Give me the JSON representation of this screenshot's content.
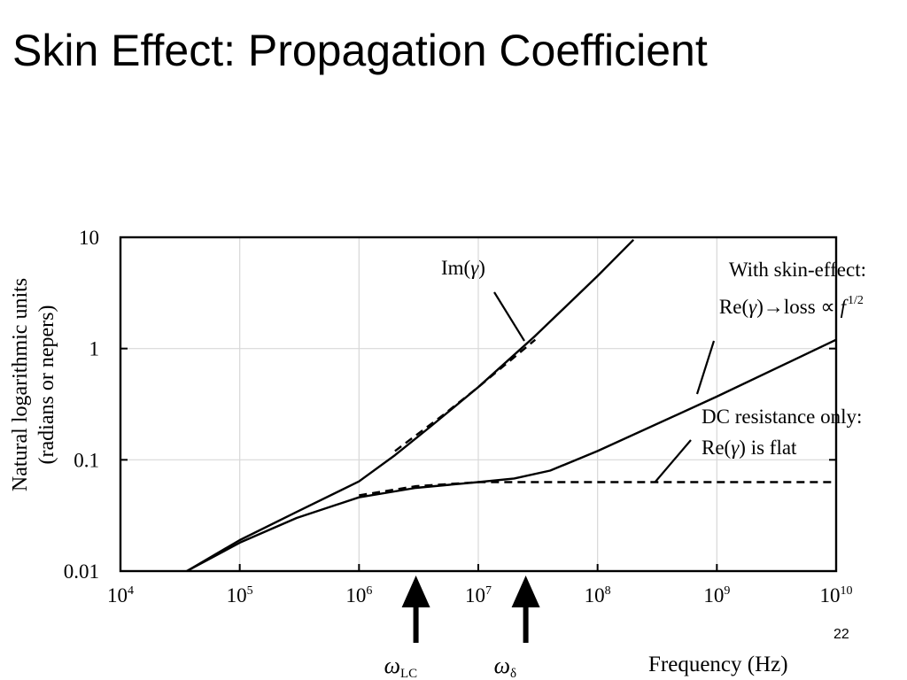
{
  "slide": {
    "title": "Skin Effect: Propagation Coefficient",
    "number": "22"
  },
  "chart_data": {
    "type": "line",
    "title": "",
    "xlabel": "Frequency (Hz)",
    "ylabel_lines": [
      "Natural logarithmic units",
      "(radians or nepers)"
    ],
    "x_scale": "log",
    "y_scale": "log",
    "xlim": [
      10000,
      10000000000
    ],
    "ylim": [
      0.01,
      10
    ],
    "grid": true,
    "x_ticks": [
      {
        "base": "10",
        "exp": "4"
      },
      {
        "base": "10",
        "exp": "5"
      },
      {
        "base": "10",
        "exp": "6"
      },
      {
        "base": "10",
        "exp": "7"
      },
      {
        "base": "10",
        "exp": "8"
      },
      {
        "base": "10",
        "exp": "9"
      },
      {
        "base": "10",
        "exp": "10"
      }
    ],
    "y_ticks": [
      "10",
      "1",
      "0.1",
      "0.01"
    ],
    "series": [
      {
        "id": "im_gamma",
        "style": "solid",
        "x": [
          36000,
          100000,
          300000,
          1000000,
          2000000,
          4000000,
          10000000,
          30000000,
          100000000,
          200000000
        ],
        "y": [
          0.01,
          0.019,
          0.034,
          0.064,
          0.11,
          0.2,
          0.45,
          1.3,
          4.5,
          9.5
        ]
      },
      {
        "id": "im_gamma_asymptote",
        "style": "dashed",
        "x": [
          2000000,
          5000000,
          10000000,
          30000000
        ],
        "y": [
          0.12,
          0.25,
          0.45,
          1.2
        ]
      },
      {
        "id": "re_gamma_skin_effect",
        "style": "solid",
        "x": [
          36000,
          100000,
          300000,
          1000000,
          3000000,
          10000000,
          20000000,
          40000000,
          100000000,
          1000000000,
          10000000000
        ],
        "y": [
          0.01,
          0.018,
          0.03,
          0.046,
          0.056,
          0.063,
          0.068,
          0.08,
          0.12,
          0.37,
          1.2
        ]
      },
      {
        "id": "re_gamma_dc_only",
        "style": "dashed",
        "x": [
          1000000,
          3000000,
          10000000,
          100000000,
          1000000000,
          10000000000
        ],
        "y": [
          0.048,
          0.058,
          0.063,
          0.063,
          0.063,
          0.063
        ]
      }
    ],
    "annotations": [
      {
        "id": "im",
        "lines": [
          {
            "text": "Im(",
            "italic": false
          },
          {
            "text": "γ",
            "italic": true
          },
          {
            "text": ")",
            "italic": false
          }
        ]
      },
      {
        "id": "skin_line1",
        "text": "With skin-effect:"
      },
      {
        "id": "skin_line2",
        "parts": [
          {
            "text": "Re(",
            "italic": false
          },
          {
            "text": "γ",
            "italic": true
          },
          {
            "text": ")→loss ∝ ",
            "italic": false
          },
          {
            "text": "f",
            "italic": true
          }
        ],
        "superscript": "1/2"
      },
      {
        "id": "dc_line1",
        "text": "DC resistance only:"
      },
      {
        "id": "dc_line2",
        "parts": [
          {
            "text": "Re(",
            "italic": false
          },
          {
            "text": "γ",
            "italic": true
          },
          {
            "text": ") is flat",
            "italic": false
          }
        ]
      }
    ],
    "markers": [
      {
        "id": "omega_lc",
        "x": 3000000,
        "symbol": "ω",
        "subscript": "LC"
      },
      {
        "id": "omega_delta",
        "x": 25000000,
        "symbol": "ω",
        "subscript": "δ"
      }
    ]
  }
}
